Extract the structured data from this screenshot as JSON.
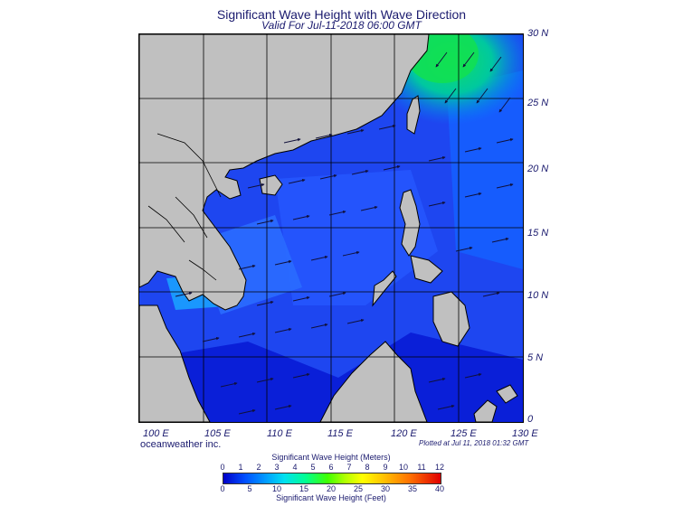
{
  "header": {
    "title": "Significant Wave Height with Wave Direction",
    "subtitle": "Valid For Jul-11-2018 06:00 GMT"
  },
  "lat_labels": [
    "30 N",
    "25 N",
    "20 N",
    "15 N",
    "10 N",
    "5 N",
    "0"
  ],
  "lon_labels": [
    "100 E",
    "105 E",
    "110 E",
    "115 E",
    "120 E",
    "125 E",
    "130 E"
  ],
  "footer": {
    "credit": "oceanweather inc.",
    "plotted": "Plotted at Jul 11, 2018 01:32 GMT"
  },
  "colorbar": {
    "meters_title": "Significant Wave Height (Meters)",
    "feet_title": "Significant Wave Height (Feet)",
    "meters_ticks": [
      "0",
      "1",
      "2",
      "3",
      "4",
      "5",
      "6",
      "7",
      "8",
      "9",
      "10",
      "11",
      "12"
    ],
    "feet_ticks": [
      "0",
      "5",
      "10",
      "15",
      "20",
      "25",
      "30",
      "35",
      "40"
    ]
  },
  "colors": {
    "land": "#c0c0c0",
    "deep_blue": "#0a1fd8",
    "mid_blue": "#1e5cff",
    "cyan": "#00a6ff",
    "green": "#00e07a"
  }
}
